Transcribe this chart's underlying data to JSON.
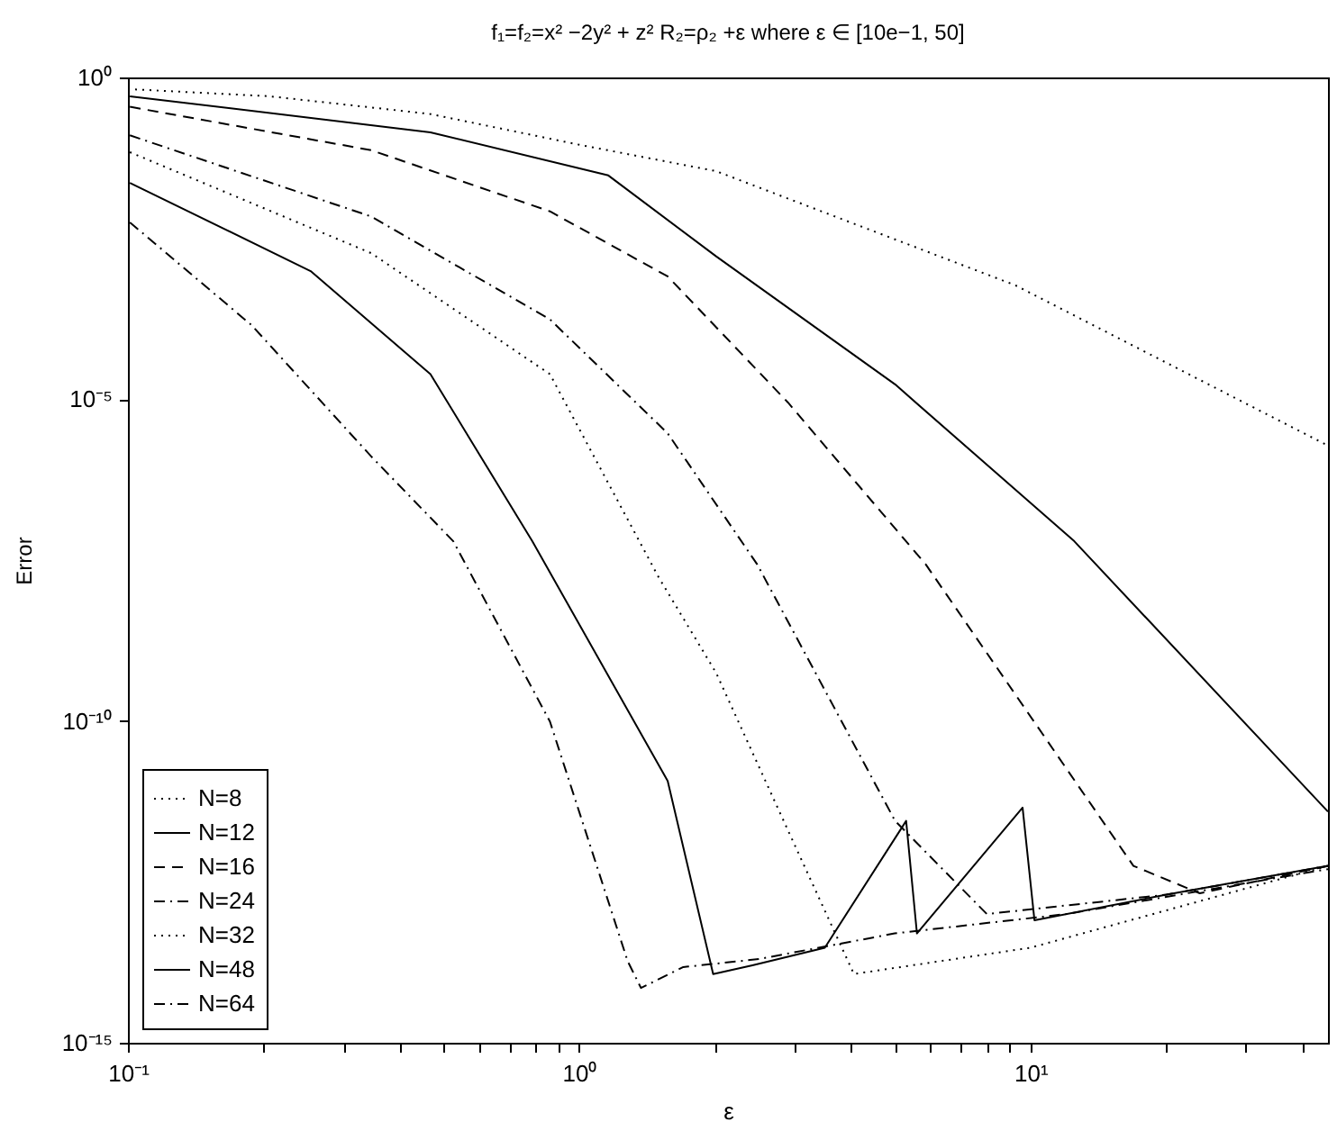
{
  "chart_data": {
    "type": "line",
    "title": "f₁=f₂=x² −2y² + z²      R₂=ρ₂ +ε          where ε ∈ [10e−1, 50]",
    "xlabel": "ε",
    "ylabel": "Error",
    "log": "xy",
    "grid": false,
    "legend": "bottom left",
    "marker": "none",
    "xlim": [
      0.1,
      45.6
    ],
    "ylim": [
      1e-15,
      1
    ],
    "xticks": [
      {
        "value": 0.1,
        "label": "10⁻¹"
      },
      {
        "value": 0.2,
        "label": null
      },
      {
        "value": 0.3,
        "label": null
      },
      {
        "value": 0.4,
        "label": null
      },
      {
        "value": 0.5,
        "label": null
      },
      {
        "value": 0.6,
        "label": null
      },
      {
        "value": 0.7,
        "label": null
      },
      {
        "value": 0.8,
        "label": null
      },
      {
        "value": 0.9,
        "label": null
      },
      {
        "value": 1,
        "label": "10⁰"
      },
      {
        "value": 2,
        "label": null
      },
      {
        "value": 3,
        "label": null
      },
      {
        "value": 4,
        "label": null
      },
      {
        "value": 5,
        "label": null
      },
      {
        "value": 6,
        "label": null
      },
      {
        "value": 7,
        "label": null
      },
      {
        "value": 8,
        "label": null
      },
      {
        "value": 9,
        "label": null
      },
      {
        "value": 10,
        "label": "10¹"
      },
      {
        "value": 20,
        "label": null
      },
      {
        "value": 30,
        "label": null
      },
      {
        "value": 40,
        "label": null
      }
    ],
    "yticks": [
      {
        "value": 1e-15,
        "label": "10⁻¹⁵"
      },
      {
        "value": 1e-10,
        "label": "10⁻¹⁰"
      },
      {
        "value": 1e-05,
        "label": "10⁻⁵"
      },
      {
        "value": 1,
        "label": "10⁰"
      }
    ],
    "series": [
      {
        "name": "N=8",
        "color": "#000000",
        "line_style": "dotted",
        "x": [
          0.1,
          0.206,
          0.468,
          1.0,
          2.01,
          9.25,
          45.6
        ],
        "values": [
          0.66,
          0.51,
          0.27,
          0.09,
          0.035,
          0.00059,
          1.9e-06
        ]
      },
      {
        "name": "N=12",
        "color": "#000000",
        "line_style": "solid",
        "x": [
          0.101,
          0.468,
          1.16,
          2.01,
          5.01,
          12.5,
          45.6
        ],
        "values": [
          0.51,
          0.14,
          0.03,
          0.00166,
          1.7e-05,
          6.2e-08,
          3.9e-12
        ]
      },
      {
        "name": "N=16",
        "color": "#000000",
        "line_style": "dashed",
        "x": [
          0.101,
          0.346,
          0.861,
          1.57,
          2.9,
          5.86,
          16.9,
          23.7,
          45.6
        ],
        "values": [
          0.35,
          0.074,
          0.0083,
          0.00081,
          8.9e-06,
          2.7e-08,
          5.6e-13,
          2.1e-13,
          5.6e-13
        ]
      },
      {
        "name": "N=24",
        "color": "#000000",
        "line_style": "dashdot",
        "x": [
          0.101,
          0.346,
          0.861,
          1.57,
          2.48,
          5.01,
          8,
          20,
          45.6
        ],
        "values": [
          0.126,
          0.0069,
          0.000174,
          2.95e-06,
          2.7e-08,
          2.8e-12,
          1e-13,
          2e-13,
          5.6e-13
        ]
      },
      {
        "name": "N=32",
        "color": "#000000",
        "line_style": "dotted",
        "x": [
          0.101,
          0.346,
          0.861,
          1.5,
          2.01,
          2.9,
          4.06,
          10,
          45.6
        ],
        "values": [
          0.069,
          0.00186,
          2.45e-05,
          1.7e-08,
          5.6e-10,
          2e-12,
          1.17e-14,
          3e-14,
          5.6e-13
        ]
      },
      {
        "name": "N=48",
        "color": "#000000",
        "line_style": "solid",
        "x": [
          0.101,
          0.254,
          0.468,
          0.787,
          1.57,
          1.98,
          2.42,
          3.5,
          5.3,
          5.6,
          9.6,
          10.2,
          20,
          45.6
        ],
        "values": [
          0.023,
          0.00098,
          2.45e-05,
          6.2e-08,
          1.17e-11,
          1.17e-14,
          1.6e-14,
          3e-14,
          2.8e-12,
          5e-14,
          4.5e-12,
          8e-14,
          2e-13,
          5.6e-13
        ]
      },
      {
        "name": "N=64",
        "color": "#000000",
        "line_style": "dashdot",
        "x": [
          0.101,
          0.188,
          0.346,
          0.526,
          0.861,
          1.28,
          1.37,
          1.7,
          2.5,
          5,
          12,
          45.6
        ],
        "values": [
          0.0056,
          0.000141,
          1.29e-06,
          6.2e-08,
          9.8e-11,
          1.86e-14,
          7.1e-15,
          1.5e-14,
          2e-14,
          5e-14,
          1e-13,
          5e-13
        ]
      }
    ]
  }
}
